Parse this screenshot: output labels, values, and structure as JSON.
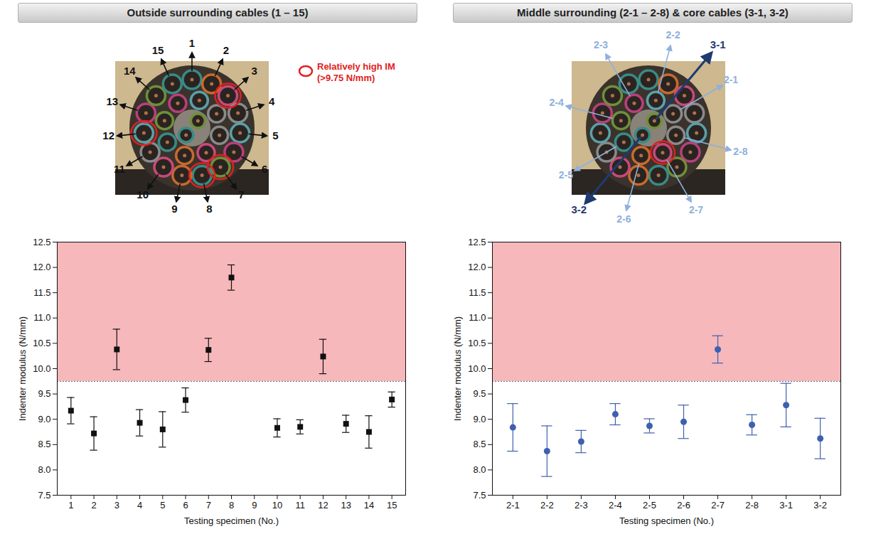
{
  "chart_data": [
    {
      "type": "scatter",
      "title": "Outside surrounding cables (1 – 15)",
      "xlabel": "Testing specimen (No.)",
      "ylabel": "Indenter modulus (N/mm)",
      "categories": [
        "1",
        "2",
        "3",
        "4",
        "5",
        "6",
        "7",
        "8",
        "9",
        "10",
        "11",
        "12",
        "13",
        "14",
        "15"
      ],
      "values": [
        9.17,
        8.72,
        10.38,
        8.93,
        8.8,
        9.38,
        10.37,
        11.8,
        null,
        8.83,
        8.85,
        10.24,
        8.91,
        8.75,
        9.39
      ],
      "errors": [
        0.26,
        0.33,
        0.4,
        0.26,
        0.35,
        0.24,
        0.23,
        0.25,
        null,
        0.18,
        0.14,
        0.34,
        0.17,
        0.32,
        0.15
      ],
      "threshold": 9.75,
      "color": "#111111",
      "marker": "square",
      "ylim": [
        7.5,
        12.5
      ],
      "yticks": [
        7.5,
        {
          "value": 8,
          "label": "8.0"
        },
        8.5,
        {
          "value": 9,
          "label": "9.0"
        },
        9.5,
        {
          "value": 10,
          "label": "10.0"
        },
        10.5,
        {
          "value": 11,
          "label": "11.0"
        },
        11.5,
        {
          "value": 12,
          "label": "12.0"
        },
        12.5
      ]
    },
    {
      "type": "scatter",
      "title": "Middle surrounding (2-1 – 2-8) & core cables (3-1, 3-2)",
      "xlabel": "Testing specimen (No.)",
      "ylabel": "Indenter modulus (N/mm)",
      "categories": [
        "2-1",
        "2-2",
        "2-3",
        "2-4",
        "2-5",
        "2-6",
        "2-7",
        "2-8",
        "3-1",
        "3-2"
      ],
      "values": [
        8.84,
        8.37,
        8.56,
        9.1,
        8.87,
        8.95,
        10.38,
        8.89,
        9.28,
        8.62
      ],
      "errors": [
        0.47,
        0.5,
        0.22,
        0.21,
        0.14,
        0.33,
        0.27,
        0.2,
        0.43,
        0.4
      ],
      "threshold": 9.75,
      "color": "#3f5fb0",
      "marker": "circle",
      "ylim": [
        7.5,
        12.5
      ],
      "yticks": [
        7.5,
        {
          "value": 8,
          "label": "8.0"
        },
        8.5,
        {
          "value": 9,
          "label": "9.0"
        },
        9.5,
        {
          "value": 10,
          "label": "10.0"
        },
        10.5,
        {
          "value": 11,
          "label": "11.0"
        },
        11.5,
        {
          "value": 12,
          "label": "12.0"
        },
        12.5
      ]
    }
  ],
  "photos": [
    {
      "rings": [
        [
          "1",
          "2",
          "3",
          "4",
          "5",
          "6",
          "7",
          "8",
          "9",
          "10",
          "11",
          "12",
          "13",
          "14",
          "15"
        ]
      ],
      "note": "Relatively high IM (>9.75 N/mm)"
    },
    {
      "rings": [
        [
          "2-1",
          "2-2",
          "2-3",
          "2-4",
          "2-5",
          "2-6",
          "2-7",
          "2-8"
        ],
        [
          "3-1",
          "3-2"
        ]
      ]
    }
  ]
}
